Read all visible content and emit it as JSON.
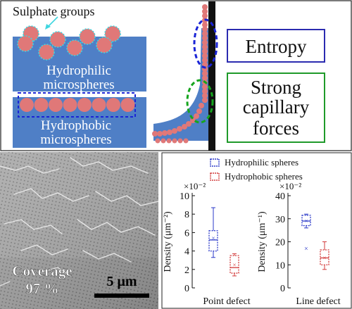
{
  "schematic": {
    "sulphate_label": "Sulphate groups",
    "hydrophilic_label": [
      "Hydrophilic",
      "microspheres"
    ],
    "hydrophobic_label": [
      "Hydrophobic",
      "microspheres"
    ],
    "entropy_box": "Entropy",
    "capillary_box": [
      "Strong",
      "capillary",
      "forces"
    ],
    "colors": {
      "substrate": "#4f7fc6",
      "sphere": "#e07878",
      "sulphate_outline": "#3fd6e0",
      "entropy_box": "#2b2bb0",
      "capillary_box": "#1f9a2a",
      "entropy_ellipse": "#1a24d6",
      "capillary_ellipse": "#16a51e"
    }
  },
  "sem": {
    "coverage_label": "Coverage",
    "coverage_value": "97 %",
    "scale_bar_label": "5 μm"
  },
  "chart_data": [
    {
      "type": "box",
      "title": "",
      "xlabel": "Point defect",
      "ylabel": "Density (μm⁻²)",
      "exponent_label": "×10⁻²",
      "ylim": [
        0,
        10
      ],
      "yticks": [
        0,
        2,
        4,
        6,
        8,
        10
      ],
      "series": [
        {
          "name": "Hydrophilic spheres",
          "color": "#2b39c8",
          "min": 3.3,
          "q1": 4.0,
          "median": 5.2,
          "q3": 6.2,
          "max": 8.7,
          "mean": 5.4,
          "outliers": []
        },
        {
          "name": "Hydrophobic spheres",
          "color": "#d23b3b",
          "min": 1.3,
          "q1": 1.6,
          "median": 2.2,
          "q3": 3.5,
          "max": 3.7,
          "mean": 2.5,
          "outliers": []
        }
      ]
    },
    {
      "type": "box",
      "title": "",
      "xlabel": "Line defect",
      "ylabel": "Density (μm⁻¹)",
      "exponent_label": "×10⁻²",
      "ylim": [
        0,
        40
      ],
      "yticks": [
        0,
        10,
        20,
        30,
        40
      ],
      "series": [
        {
          "name": "Hydrophilic spheres",
          "color": "#2b39c8",
          "min": 26,
          "q1": 27,
          "median": 29,
          "q3": 31.5,
          "max": 32,
          "mean": 29,
          "outliers": [
            17
          ]
        },
        {
          "name": "Hydrophobic spheres",
          "color": "#d23b3b",
          "min": 8,
          "q1": 10,
          "median": 13,
          "q3": 16.5,
          "max": 20,
          "mean": 13,
          "outliers": []
        }
      ]
    }
  ]
}
